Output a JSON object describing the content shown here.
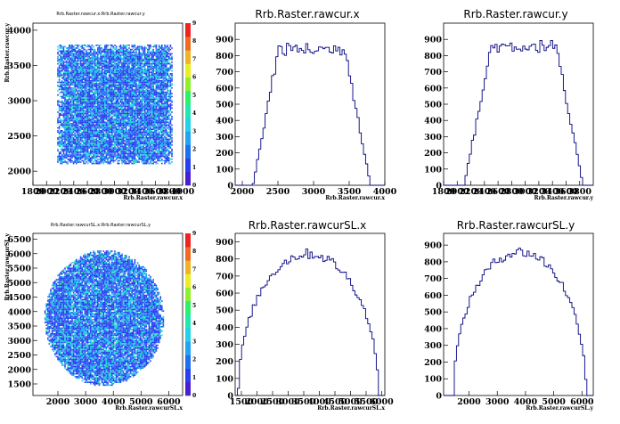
{
  "page": {
    "background": "#ffffff"
  },
  "chart_data": [
    {
      "id": "p1",
      "type": "heatmap",
      "title": "Rrb.Raster.rawcur.x:Rrb.Raster.rawcur.y",
      "xlabel": "Rrb.Raster.rawcur.x",
      "ylabel": "Rrb.Raster.rawcur.y",
      "xlim": [
        1800,
        4000
      ],
      "ylim": [
        1800,
        4100
      ],
      "xticks": [
        "1800",
        "2000",
        "2200",
        "2400",
        "2600",
        "2800",
        "3000",
        "3200",
        "3400",
        "3600",
        "3800",
        "4000"
      ],
      "yticks": [
        "2000",
        "2500",
        "3000",
        "3500",
        "4000"
      ],
      "zlim": [
        0,
        9
      ],
      "zticks": [
        "0",
        "1",
        "2",
        "3",
        "4",
        "5",
        "6",
        "7",
        "8",
        "9"
      ],
      "shape": "square",
      "region": {
        "x": [
          2150,
          3850
        ],
        "y": [
          2100,
          3800
        ]
      }
    },
    {
      "id": "p2",
      "type": "line",
      "title": "Rrb.Raster.rawcur.x",
      "xlabel": "Rrb.Raster.rawcur.x",
      "ylabel": "",
      "xlim": [
        1900,
        4000
      ],
      "ylim": [
        0,
        1000
      ],
      "xticks": [
        "2000",
        "2500",
        "3000",
        "3500",
        "4000"
      ],
      "yticks": [
        "0",
        "100",
        "200",
        "300",
        "400",
        "500",
        "600",
        "700",
        "800",
        "900"
      ],
      "shape": {
        "low": 2150,
        "high": 3800,
        "ramp": 350,
        "plateau": 860
      }
    },
    {
      "id": "p3",
      "type": "line",
      "title": "Rrb.Raster.rawcur.y",
      "xlabel": "Rrb.Raster.rawcur.y",
      "ylabel": "",
      "xlim": [
        1800,
        4000
      ],
      "ylim": [
        0,
        1000
      ],
      "xticks": [
        "1800",
        "2000",
        "2200",
        "2400",
        "2600",
        "2800",
        "3000",
        "3200",
        "3400",
        "3600",
        "3800"
      ],
      "yticks": [
        "0",
        "100",
        "200",
        "300",
        "400",
        "500",
        "600",
        "700",
        "800",
        "900"
      ],
      "shape": {
        "low": 2100,
        "high": 3850,
        "ramp": 400,
        "plateau": 880
      }
    },
    {
      "id": "p4",
      "type": "heatmap",
      "title": "Rrb.Raster.rawcurSL.x:Rrb.Raster.rawcurSL.y",
      "xlabel": "Rrb.Raster.rawcurSL.x",
      "ylabel": "Rrb.Raster.rawcurSL.y",
      "xlim": [
        1100,
        6500
      ],
      "ylim": [
        1100,
        6700
      ],
      "xticks": [
        "2000",
        "3000",
        "4000",
        "5000",
        "6000"
      ],
      "yticks": [
        "1500",
        "2000",
        "2500",
        "3000",
        "3500",
        "4000",
        "4500",
        "5000",
        "5500",
        "6000",
        "6500"
      ],
      "zlim": [
        0,
        9
      ],
      "zticks": [
        "0",
        "1",
        "2",
        "3",
        "4",
        "5",
        "6",
        "7",
        "8",
        "9"
      ],
      "shape": "disk",
      "region": {
        "cx": 3650,
        "cy": 3800,
        "rx": 2150,
        "ry": 2350
      }
    },
    {
      "id": "p5",
      "type": "line",
      "title": "Rrb.Raster.rawcurSL.x",
      "xlabel": "Rrb.Raster.rawcurSL.x",
      "ylabel": "",
      "xlim": [
        1300,
        6100
      ],
      "ylim": [
        0,
        950
      ],
      "xticks": [
        "1500",
        "2000",
        "2500",
        "3000",
        "3500",
        "4000",
        "4500",
        "5000",
        "5500",
        "6000"
      ],
      "yticks": [
        "0",
        "100",
        "200",
        "300",
        "400",
        "500",
        "600",
        "700",
        "800",
        "900"
      ],
      "shape": {
        "center": 3650,
        "radius": 2250,
        "peak": 860
      }
    },
    {
      "id": "p6",
      "type": "line",
      "title": "Rrb.Raster.rawcurSL.y",
      "xlabel": "Rrb.Raster.rawcurSL.y",
      "ylabel": "",
      "xlim": [
        1100,
        6400
      ],
      "ylim": [
        0,
        970
      ],
      "xticks": [
        "2000",
        "3000",
        "4000",
        "5000",
        "6000"
      ],
      "yticks": [
        "0",
        "100",
        "200",
        "300",
        "400",
        "500",
        "600",
        "700",
        "800",
        "900"
      ],
      "shape": {
        "center": 3800,
        "radius": 2350,
        "peak": 890
      }
    }
  ]
}
